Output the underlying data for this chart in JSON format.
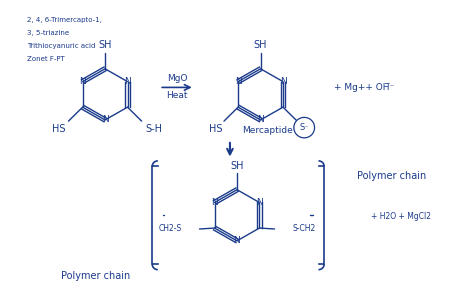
{
  "bg_color": "#ffffff",
  "line_color": "#1a3a8a",
  "text_color": "#1a3a8a",
  "figsize": [
    4.74,
    3.05
  ],
  "dpi": 100,
  "title_note_lines": [
    "2, 4, 6-Trimercapto-1,",
    "3, 5-triazine",
    "Trithiocyanuric acid",
    "Zonet F-PT"
  ],
  "arrow_label_top": "MgO",
  "arrow_label_bottom": "Heat",
  "product_label": "+ Mg++ OH̅⁻",
  "mercaptide_label": "Mercaptide",
  "polymer_chain_top": "Polymer chain",
  "polymer_chain_bottom": "Polymer chain",
  "byproduct": "+ H2O + MgCl2",
  "ch2s_label": "CH2-S",
  "sch2_label": "S-CH2"
}
